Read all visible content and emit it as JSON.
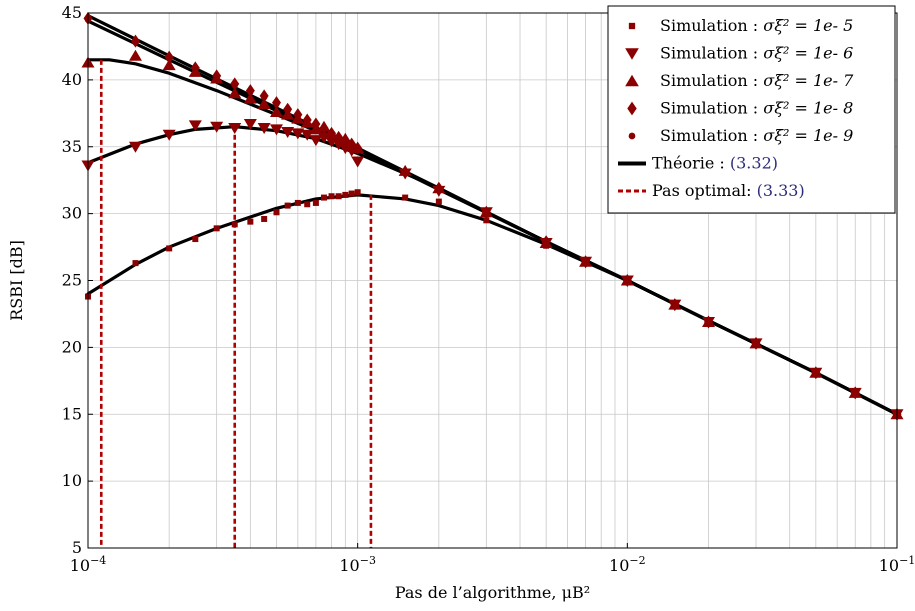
{
  "chart_data": {
    "type": "line",
    "xscale": "log",
    "xlim": [
      0.0001,
      0.1
    ],
    "ylim": [
      5,
      45
    ],
    "grid": true,
    "xlabel": "Pas de l’algorithme, μB²",
    "ylabel": "RSBI [dB]",
    "x_ticks": [
      "10−4",
      "10−3",
      "10−2",
      "10−1"
    ],
    "y_ticks": [
      "5",
      "10",
      "15",
      "20",
      "25",
      "30",
      "35",
      "40",
      "45"
    ],
    "legend_position": "top-right",
    "colors": {
      "simulation": "#8b0000",
      "theory": "#000000",
      "optimal": "#b00000"
    },
    "legend": [
      {
        "kind": "square",
        "prefix": "Simulation : ",
        "math": "σξ² = 1e- 5",
        "suffix": ""
      },
      {
        "kind": "tri-down",
        "prefix": "Simulation : ",
        "math": "σξ² = 1e- 6",
        "suffix": ""
      },
      {
        "kind": "tri-up",
        "prefix": "Simulation : ",
        "math": "σξ² = 1e- 7",
        "suffix": ""
      },
      {
        "kind": "diamond",
        "prefix": "Simulation : ",
        "math": "σξ² = 1e- 8",
        "suffix": ""
      },
      {
        "kind": "circle",
        "prefix": "Simulation : ",
        "math": "σξ² = 1e- 9",
        "suffix": ""
      },
      {
        "kind": "solid",
        "prefix": "Théorie : ",
        "math": "",
        "suffix": "(3.32)"
      },
      {
        "kind": "dashed",
        "prefix": "Pas optimal: ",
        "math": "",
        "suffix": "(3.33)"
      }
    ],
    "theory_curves": [
      {
        "x": [
          0.0001,
          0.00015,
          0.0002,
          0.0003,
          0.0005,
          0.0007,
          0.001,
          0.0015,
          0.002,
          0.003,
          0.005,
          0.01,
          0.02,
          0.05,
          0.1
        ],
        "y": [
          24.0,
          26.2,
          27.5,
          28.9,
          30.4,
          31.1,
          31.4,
          31.1,
          30.6,
          29.5,
          27.7,
          25.0,
          22.0,
          18.1,
          15.0
        ]
      },
      {
        "x": [
          0.0001,
          0.00015,
          0.0002,
          0.00025,
          0.00035,
          0.0005,
          0.0007,
          0.001,
          0.0015,
          0.002,
          0.003,
          0.005,
          0.01,
          0.02,
          0.05,
          0.1
        ],
        "y": [
          33.8,
          35.2,
          35.9,
          36.3,
          36.5,
          36.2,
          35.6,
          34.5,
          33.0,
          31.9,
          30.1,
          27.9,
          25.0,
          22.0,
          18.1,
          15.0
        ]
      },
      {
        "x": [
          0.0001,
          0.00012,
          0.00015,
          0.0002,
          0.0003,
          0.0005,
          0.0007,
          0.001,
          0.0015,
          0.002,
          0.003,
          0.005,
          0.01,
          0.02,
          0.05,
          0.1
        ],
        "y": [
          41.5,
          41.5,
          41.2,
          40.5,
          39.2,
          37.4,
          36.2,
          34.8,
          33.1,
          31.9,
          30.1,
          27.9,
          25.0,
          22.0,
          18.1,
          15.0
        ]
      },
      {
        "x": [
          0.0001,
          0.0002,
          0.0005,
          0.001,
          0.002,
          0.005,
          0.01,
          0.02,
          0.05,
          0.1
        ],
        "y": [
          44.8,
          41.8,
          37.9,
          34.9,
          31.9,
          27.9,
          25.0,
          22.0,
          18.1,
          15.0
        ]
      },
      {
        "x": [
          0.0001,
          0.0002,
          0.0005,
          0.001,
          0.002,
          0.005,
          0.01,
          0.02,
          0.05,
          0.1
        ],
        "y": [
          44.4,
          41.5,
          37.7,
          34.8,
          31.8,
          27.9,
          25.0,
          22.0,
          18.1,
          15.0
        ]
      }
    ],
    "optimal_steps": [
      {
        "x": 0.000112,
        "y": 41.5
      },
      {
        "x": 0.00035,
        "y": 36.5
      },
      {
        "x": 0.00112,
        "y": 31.4
      }
    ],
    "series": [
      {
        "name": "Simulation : σξ² = 1e- 5",
        "marker": "square",
        "x": [
          0.0001,
          0.00015,
          0.0002,
          0.00025,
          0.0003,
          0.00035,
          0.0004,
          0.00045,
          0.0005,
          0.00055,
          0.0006,
          0.00065,
          0.0007,
          0.00075,
          0.0008,
          0.00085,
          0.0009,
          0.00095,
          0.001,
          0.0015,
          0.002,
          0.003,
          0.005,
          0.007,
          0.01,
          0.015,
          0.02,
          0.03,
          0.05,
          0.07,
          0.1
        ],
        "y": [
          23.8,
          26.3,
          27.4,
          28.1,
          28.9,
          29.2,
          29.4,
          29.6,
          30.1,
          30.6,
          30.8,
          30.7,
          30.8,
          31.2,
          31.3,
          31.3,
          31.4,
          31.5,
          31.6,
          31.2,
          30.9,
          29.5,
          27.6,
          26.4,
          25.0,
          23.2,
          21.9,
          20.3,
          18.1,
          16.6,
          15.0
        ]
      },
      {
        "name": "Simulation : σξ² = 1e- 6",
        "marker": "tri-down",
        "x": [
          0.0001,
          0.00015,
          0.0002,
          0.00025,
          0.0003,
          0.00035,
          0.0004,
          0.00045,
          0.0005,
          0.00055,
          0.0006,
          0.00065,
          0.0007,
          0.00075,
          0.0008,
          0.00085,
          0.0009,
          0.00095,
          0.001,
          0.0015,
          0.002,
          0.003,
          0.005,
          0.007,
          0.01,
          0.015,
          0.02,
          0.03,
          0.05,
          0.07,
          0.1
        ],
        "y": [
          33.6,
          35.0,
          35.9,
          36.6,
          36.5,
          36.4,
          36.7,
          36.4,
          36.3,
          36.1,
          36.0,
          35.9,
          35.5,
          35.7,
          35.4,
          35.2,
          34.9,
          34.7,
          33.9,
          33.0,
          31.7,
          30.1,
          27.8,
          26.4,
          25.0,
          23.2,
          21.9,
          20.3,
          18.1,
          16.6,
          15.0
        ]
      },
      {
        "name": "Simulation : σξ² = 1e- 7",
        "marker": "tri-up",
        "x": [
          0.0001,
          0.00015,
          0.0002,
          0.00025,
          0.0003,
          0.00035,
          0.0004,
          0.00045,
          0.0005,
          0.00055,
          0.0006,
          0.00065,
          0.0007,
          0.00075,
          0.0008,
          0.00085,
          0.0009,
          0.00095,
          0.001,
          0.0015,
          0.002,
          0.003,
          0.005,
          0.007,
          0.01,
          0.015,
          0.02,
          0.03,
          0.05,
          0.07,
          0.1
        ],
        "y": [
          41.3,
          41.8,
          41.1,
          40.6,
          40.1,
          39.0,
          38.6,
          38.2,
          37.6,
          37.4,
          37.1,
          36.8,
          36.3,
          36.5,
          36.0,
          35.7,
          35.6,
          35.2,
          34.9,
          33.2,
          31.9,
          30.1,
          27.8,
          26.4,
          25.0,
          23.2,
          21.9,
          20.3,
          18.1,
          16.6,
          15.0
        ]
      },
      {
        "name": "Simulation : σξ² = 1e- 8",
        "marker": "diamond",
        "x": [
          0.0001,
          0.00015,
          0.0002,
          0.00025,
          0.0003,
          0.00035,
          0.0004,
          0.00045,
          0.0005,
          0.00055,
          0.0006,
          0.00065,
          0.0007,
          0.00075,
          0.0008,
          0.00085,
          0.0009,
          0.00095,
          0.001,
          0.0015,
          0.002,
          0.003,
          0.005,
          0.007,
          0.01,
          0.015,
          0.02,
          0.03,
          0.05,
          0.07,
          0.1
        ],
        "y": [
          44.6,
          42.9,
          41.7,
          40.9,
          40.3,
          39.7,
          39.2,
          38.8,
          38.3,
          37.8,
          37.4,
          37.0,
          36.7,
          36.4,
          36.0,
          35.7,
          35.5,
          35.2,
          34.9,
          33.1,
          31.9,
          30.1,
          27.9,
          26.4,
          25.0,
          23.2,
          21.9,
          20.3,
          18.1,
          16.6,
          15.0
        ]
      },
      {
        "name": "Simulation : σξ² = 1e- 9",
        "marker": "circle",
        "x": [
          0.0001,
          0.00015,
          0.0002,
          0.00025,
          0.0003,
          0.00035,
          0.0004,
          0.00045,
          0.0005,
          0.00055,
          0.0006,
          0.00065,
          0.0007,
          0.00075,
          0.0008,
          0.00085,
          0.0009,
          0.00095,
          0.001,
          0.0015,
          0.002,
          0.003,
          0.005,
          0.007,
          0.01,
          0.015,
          0.02,
          0.03,
          0.05,
          0.07,
          0.1
        ],
        "y": [
          44.5,
          42.8,
          41.6,
          40.8,
          40.2,
          39.6,
          39.1,
          38.7,
          38.2,
          37.7,
          37.3,
          36.9,
          36.6,
          36.3,
          36.0,
          35.7,
          35.4,
          35.2,
          34.9,
          33.1,
          31.9,
          30.1,
          27.8,
          26.4,
          25.0,
          23.2,
          21.9,
          20.3,
          18.1,
          16.6,
          15.0
        ]
      }
    ]
  }
}
